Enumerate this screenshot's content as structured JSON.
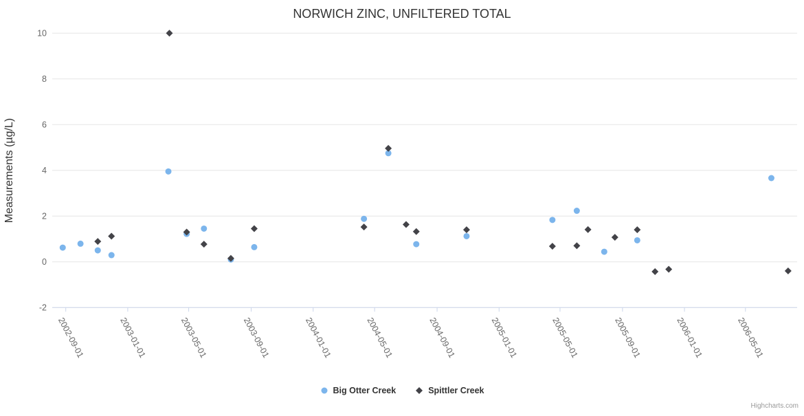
{
  "credit": "Highcharts.com",
  "chart_data": {
    "type": "scatter",
    "title": "NORWICH ZINC, UNFILTERED TOTAL",
    "xlabel": "",
    "ylabel": "Measurements (µg/L)",
    "ylim": [
      -2,
      10
    ],
    "yticks": [
      -2,
      0,
      2,
      4,
      6,
      8,
      10
    ],
    "xtick_labels": [
      "2002-09-01",
      "2003-01-01",
      "2003-05-01",
      "2003-09-01",
      "2004-01-01",
      "2004-05-01",
      "2004-09-01",
      "2005-01-01",
      "2005-05-01",
      "2005-09-01",
      "2006-01-01",
      "2006-05-01"
    ],
    "grid": "horizontal-only",
    "legend_position": "bottom-center",
    "series": [
      {
        "name": "Big Otter Creek",
        "color": "#7cb5ec",
        "marker": "circle",
        "points": [
          [
            "2002-08-26",
            0.62
          ],
          [
            "2002-09-30",
            0.79
          ],
          [
            "2002-11-03",
            0.5
          ],
          [
            "2002-11-30",
            0.29
          ],
          [
            "2003-03-22",
            3.95
          ],
          [
            "2003-04-27",
            1.22
          ],
          [
            "2003-05-31",
            1.45
          ],
          [
            "2003-07-23",
            0.1
          ],
          [
            "2003-09-07",
            0.64
          ],
          [
            "2004-04-10",
            1.88
          ],
          [
            "2004-05-28",
            4.75
          ],
          [
            "2004-07-22",
            0.77
          ],
          [
            "2004-10-29",
            1.12
          ],
          [
            "2005-04-16",
            1.83
          ],
          [
            "2005-06-03",
            2.23
          ],
          [
            "2005-07-27",
            0.44
          ],
          [
            "2005-09-30",
            0.94
          ],
          [
            "2006-06-21",
            3.66
          ]
        ]
      },
      {
        "name": "Spittler Creek",
        "color": "#434348",
        "marker": "diamond",
        "points": [
          [
            "2002-11-03",
            0.89
          ],
          [
            "2002-11-30",
            1.12
          ],
          [
            "2003-03-24",
            10.0
          ],
          [
            "2003-04-27",
            1.3
          ],
          [
            "2003-05-31",
            0.77
          ],
          [
            "2003-07-23",
            0.15
          ],
          [
            "2003-09-07",
            1.45
          ],
          [
            "2004-04-10",
            1.52
          ],
          [
            "2004-05-28",
            4.96
          ],
          [
            "2004-07-02",
            1.63
          ],
          [
            "2004-07-22",
            1.32
          ],
          [
            "2004-10-29",
            1.4
          ],
          [
            "2005-04-16",
            0.68
          ],
          [
            "2005-06-03",
            0.7
          ],
          [
            "2005-06-25",
            1.41
          ],
          [
            "2005-08-17",
            1.07
          ],
          [
            "2005-09-30",
            1.4
          ],
          [
            "2005-11-04",
            -0.43
          ],
          [
            "2005-12-01",
            -0.33
          ],
          [
            "2006-07-24",
            -0.4
          ]
        ]
      }
    ]
  }
}
